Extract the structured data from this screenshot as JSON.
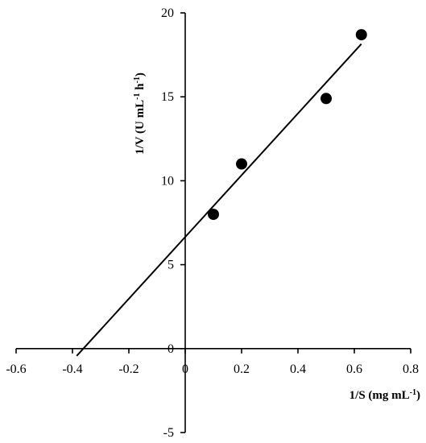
{
  "chart_data": {
    "type": "scatter",
    "title": "",
    "xlabel": {
      "prefix": "1/S (mg mL",
      "sup": "-1",
      "suffix": ")"
    },
    "ylabel": {
      "prefix": "1/V (U mL",
      "sup1": "-1",
      "mid": " h",
      "sup2": "-1",
      "suffix": ")"
    },
    "xlim": [
      -0.6,
      0.8
    ],
    "ylim": [
      -5,
      20
    ],
    "x_ticks": [
      -0.6,
      -0.4,
      -0.2,
      0,
      0.2,
      0.4,
      0.6,
      0.8
    ],
    "x_tick_labels": [
      "-0.6",
      "-0.4",
      "-0.2",
      "0",
      "0.2",
      "0.4",
      "0.6",
      "0.8"
    ],
    "y_ticks": [
      -5,
      0,
      5,
      10,
      15,
      20
    ],
    "y_tick_labels": [
      "-5",
      "0",
      "5",
      "10",
      "15",
      "20"
    ],
    "grid": false,
    "legend": "none",
    "points": [
      {
        "x": 0.1,
        "y": 8.0
      },
      {
        "x": 0.2,
        "y": 11.0
      },
      {
        "x": 0.5,
        "y": 14.9
      },
      {
        "x": 0.625,
        "y": 18.7
      }
    ],
    "trendline": {
      "slope": 18.4,
      "intercept": 6.65,
      "x_start": -0.385,
      "x_end": 0.625
    },
    "colors": {
      "marks": "#000000",
      "axes": "#000000",
      "background": "#ffffff"
    }
  }
}
